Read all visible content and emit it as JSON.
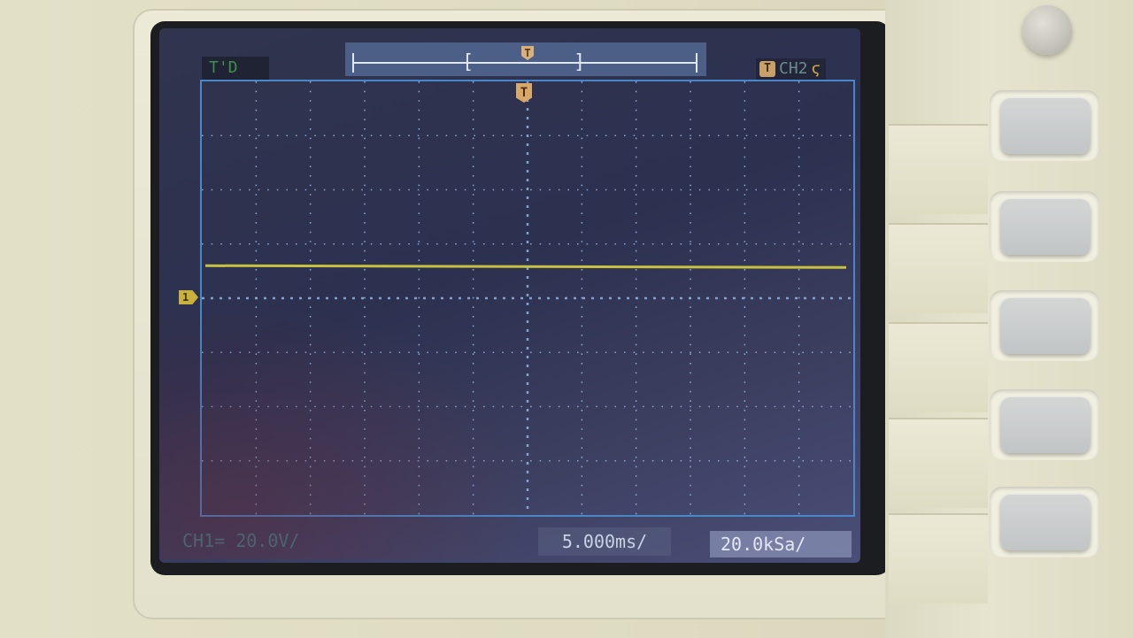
{
  "status": {
    "trigger_state": "T'D",
    "trigger_source": "CH2",
    "trigger_badge": "T",
    "edge_symbol": "ϛ"
  },
  "memory_bar": {
    "trigger_marker": "T"
  },
  "screen": {
    "trigger_pointer": "T",
    "channel_marker": "1",
    "grid_divisions_x": 12,
    "grid_divisions_y": 8,
    "trace_level_divisions_above_ground": 0.6
  },
  "readouts": {
    "channel_scale": "CH1= 20.0V/",
    "timebase": "5.000ms/",
    "sample_rate": "20.0kSa/"
  },
  "colors": {
    "trace": "#c8c040",
    "grid": "#8fb6e6",
    "screen_border": "#4a86c8"
  }
}
